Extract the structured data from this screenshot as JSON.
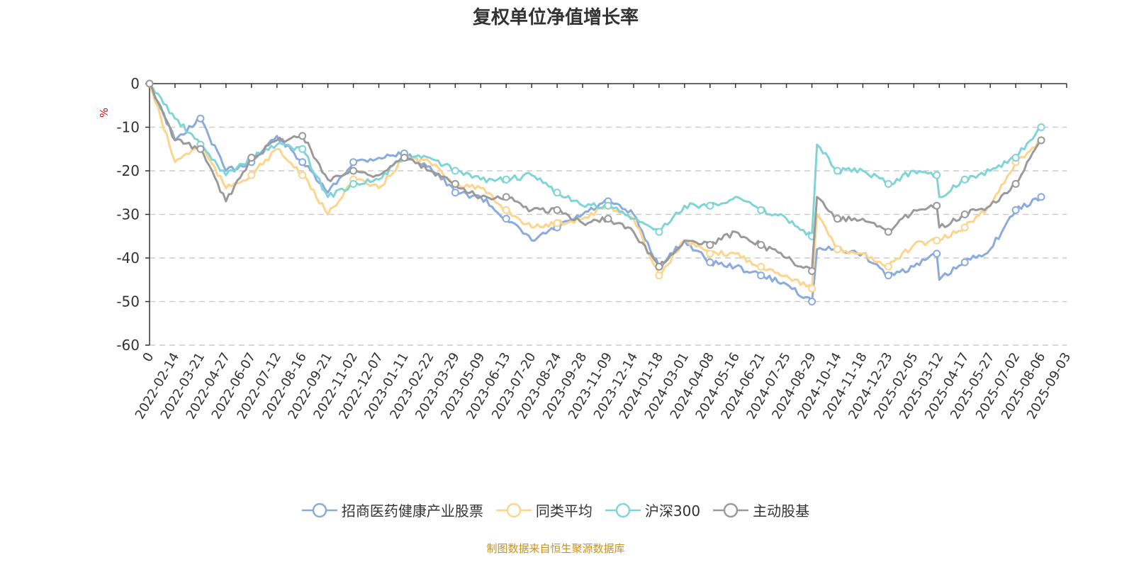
{
  "title": "复权单位净值增长率",
  "unit": "%",
  "footer": "制图数据来自恒生聚源数据库",
  "chart_data": {
    "type": "line",
    "title": "复权单位净值增长率",
    "ylabel": "%",
    "ylim": [
      -60,
      0
    ],
    "yticks": [
      0,
      -10,
      -20,
      -30,
      -40,
      -50,
      -60
    ],
    "grid": true,
    "legend_position": "bottom",
    "categories": [
      "0",
      "2022-02-14",
      "2022-03-21",
      "2022-04-27",
      "2022-06-07",
      "2022-07-12",
      "2022-08-16",
      "2022-09-21",
      "2022-11-02",
      "2022-12-07",
      "2023-01-11",
      "2023-02-22",
      "2023-03-29",
      "2023-05-09",
      "2023-06-13",
      "2023-07-20",
      "2023-08-24",
      "2023-09-28",
      "2023-11-09",
      "2023-12-14",
      "2024-01-18",
      "2024-03-01",
      "2024-04-08",
      "2024-05-16",
      "2024-06-21",
      "2024-07-25",
      "2024-08-29",
      "2024-10-14",
      "2024-11-18",
      "2024-12-23",
      "2025-02-05",
      "2025-03-12",
      "2025-04-17",
      "2025-05-27",
      "2025-07-02",
      "2025-08-06",
      "2025-09-03"
    ],
    "x": [
      0,
      1,
      2,
      3,
      4,
      5,
      6,
      7,
      8,
      9,
      10,
      11,
      12,
      13,
      14,
      15,
      16,
      17,
      18,
      19,
      20,
      21,
      22,
      23,
      24,
      25,
      26,
      26.2,
      27,
      28,
      29,
      30,
      30.9,
      31,
      32,
      33,
      34,
      35
    ],
    "series": [
      {
        "name": "招商医药健康产业股票",
        "color": "#8aabdb",
        "values": [
          0,
          -13,
          -8,
          -20,
          -18,
          -12,
          -18,
          -25,
          -18,
          -17,
          -16,
          -19,
          -25,
          -26,
          -31,
          -36,
          -33,
          -30,
          -27,
          -30,
          -42,
          -36,
          -41,
          -42,
          -44,
          -46,
          -50,
          -38,
          -38,
          -39,
          -44,
          -42,
          -39,
          -45,
          -41,
          -38,
          -29,
          -26
        ]
      },
      {
        "name": "同类平均",
        "color": "#fdd48e",
        "values": [
          0,
          -18,
          -14,
          -24,
          -21,
          -15,
          -21,
          -30,
          -22,
          -24,
          -17,
          -18,
          -23,
          -24,
          -29,
          -33,
          -32,
          -31,
          -28,
          -31,
          -44,
          -36,
          -39,
          -39,
          -42,
          -44,
          -47,
          -30,
          -38,
          -39,
          -42,
          -37,
          -36,
          -36,
          -33,
          -28,
          -18,
          -13
        ]
      },
      {
        "name": "沪深300",
        "color": "#80d4d6",
        "values": [
          0,
          -8,
          -14,
          -21,
          -17,
          -14,
          -15,
          -26,
          -23,
          -22,
          -17,
          -17,
          -20,
          -22,
          -22,
          -21,
          -25,
          -28,
          -28,
          -31,
          -34,
          -28,
          -28,
          -26,
          -29,
          -31,
          -35,
          -14,
          -20,
          -20,
          -23,
          -20,
          -21,
          -26,
          -22,
          -20,
          -17,
          -10
        ]
      },
      {
        "name": "主动股基",
        "color": "#9a9a9a",
        "values": [
          0,
          -13,
          -15,
          -27,
          -17,
          -13,
          -12,
          -22,
          -20,
          -21,
          -17,
          -20,
          -23,
          -26,
          -26,
          -29,
          -29,
          -32,
          -31,
          -34,
          -42,
          -36,
          -37,
          -34,
          -37,
          -40,
          -43,
          -26,
          -31,
          -31,
          -34,
          -29,
          -28,
          -33,
          -30,
          -28,
          -23,
          -13
        ]
      }
    ]
  }
}
